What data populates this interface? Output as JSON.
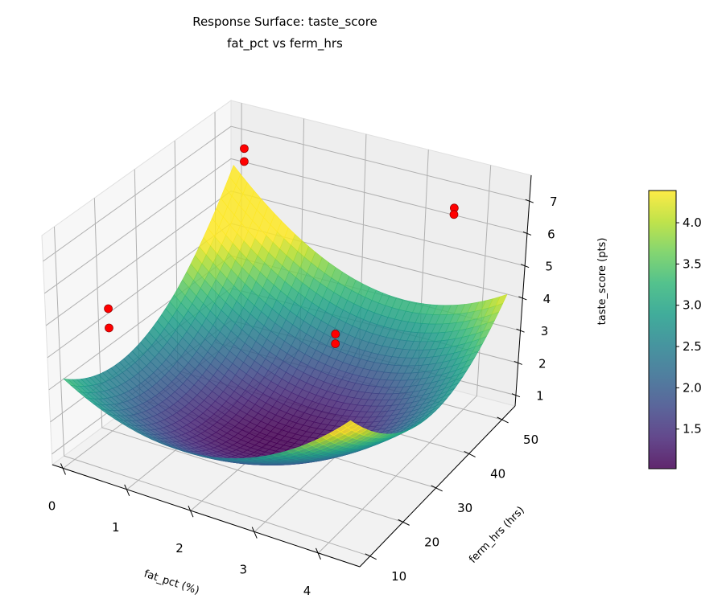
{
  "chart_data": {
    "type": "surface3d",
    "title": "Response Surface: taste_score",
    "subtitle": "fat_pct vs ferm_hrs",
    "xlabel": "fat_pct (%)",
    "ylabel": "ferm_hrs (hrs)",
    "zlabel": "taste_score (pts)",
    "xticks": [
      0,
      1,
      2,
      3,
      4
    ],
    "yticks": [
      10,
      20,
      30,
      40,
      50
    ],
    "zticks": [
      1,
      2,
      3,
      4,
      5,
      6,
      7
    ],
    "xlim": [
      -0.17,
      4.65
    ],
    "ylim": [
      6.9,
      54
    ],
    "zlim": [
      0.67,
      7.8
    ],
    "surface": {
      "x_range": [
        0,
        4.5
      ],
      "y_range": [
        8,
        52
      ],
      "colormap": "viridis",
      "alpha": 0.85,
      "approx_model": {
        "z_min": 1.0,
        "x_at_min": 2.2,
        "y_at_min": 27,
        "a_xx": 0.35,
        "b_yy": 0.00385,
        "c_xy": -0.0174
      }
    },
    "scatter": {
      "color": "#ff0000",
      "points": [
        {
          "x": 0.5,
          "y": 12,
          "z": 5.5
        },
        {
          "x": 0.5,
          "y": 12,
          "z": 4.9
        },
        {
          "x": 3.0,
          "y": 30,
          "z": 4.5
        },
        {
          "x": 3.0,
          "y": 30,
          "z": 4.2
        },
        {
          "x": 0.3,
          "y": 50,
          "z": 6.9
        },
        {
          "x": 0.3,
          "y": 50,
          "z": 6.5
        },
        {
          "x": 3.8,
          "y": 48,
          "z": 7.0
        },
        {
          "x": 3.8,
          "y": 48,
          "z": 6.8
        }
      ]
    },
    "colorbar": {
      "vmin": 1.02,
      "vmax": 4.39,
      "ticks": [
        "1.5",
        "2.0",
        "2.5",
        "3.0",
        "3.5",
        "4.0"
      ]
    },
    "grid": true
  }
}
